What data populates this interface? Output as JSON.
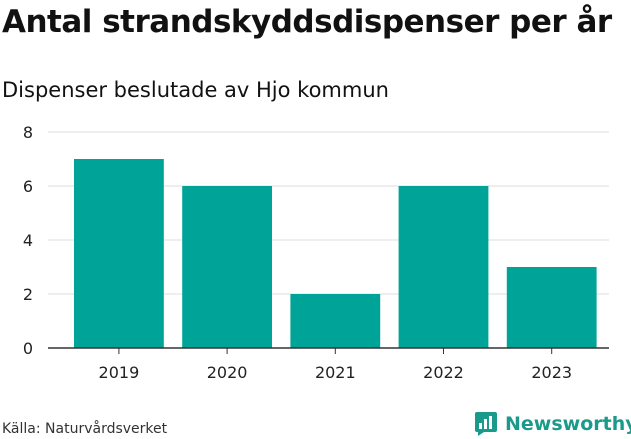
{
  "header": {
    "title": "Antal strandskyddsdispenser per år",
    "subtitle": "Dispenser beslutade av Hjo kommun"
  },
  "footer": {
    "source": "Källa: Naturvårdsverket",
    "brand": "Newsworthy"
  },
  "colors": {
    "bar": "#00a398",
    "grid": "#dddddd",
    "axis": "#333333",
    "brand": "#1a9a8b"
  },
  "chart_data": {
    "type": "bar",
    "title": "Antal strandskyddsdispenser per år",
    "subtitle": "Dispenser beslutade av Hjo kommun",
    "categories": [
      "2019",
      "2020",
      "2021",
      "2022",
      "2023"
    ],
    "values": [
      7,
      6,
      2,
      6,
      3
    ],
    "xlabel": "",
    "ylabel": "",
    "ylim": [
      0,
      8
    ],
    "yticks": [
      0,
      2,
      4,
      6,
      8
    ],
    "grid": true,
    "legend": "none"
  }
}
